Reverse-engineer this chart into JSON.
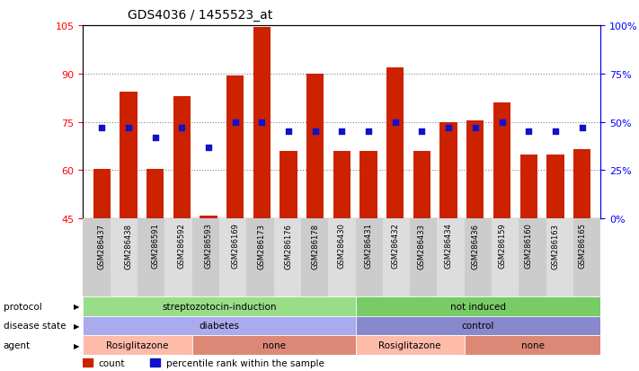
{
  "title": "GDS4036 / 1455523_at",
  "samples": [
    "GSM286437",
    "GSM286438",
    "GSM286591",
    "GSM286592",
    "GSM286593",
    "GSM286169",
    "GSM286173",
    "GSM286176",
    "GSM286178",
    "GSM286430",
    "GSM286431",
    "GSM286432",
    "GSM286433",
    "GSM286434",
    "GSM286436",
    "GSM286159",
    "GSM286160",
    "GSM286163",
    "GSM286165"
  ],
  "counts": [
    60.5,
    84.5,
    60.5,
    83.0,
    46.0,
    89.5,
    104.5,
    66.0,
    90.0,
    66.0,
    66.0,
    92.0,
    66.0,
    75.0,
    75.5,
    81.0,
    65.0,
    65.0,
    66.5
  ],
  "percentiles": [
    47,
    47,
    42,
    47,
    37,
    50,
    50,
    45,
    45,
    45,
    45,
    50,
    45,
    47,
    47,
    50,
    45,
    45,
    47
  ],
  "ylim_left": [
    45,
    105
  ],
  "ylim_right": [
    0,
    100
  ],
  "yticks_left": [
    45,
    60,
    75,
    90,
    105
  ],
  "yticks_right": [
    0,
    25,
    50,
    75,
    100
  ],
  "ytick_labels_right": [
    "0%",
    "25%",
    "50%",
    "75%",
    "100%"
  ],
  "hlines": [
    60,
    75,
    90
  ],
  "bar_color": "#cc2200",
  "dot_color": "#1111cc",
  "protocol_groups": [
    {
      "label": "streptozotocin-induction",
      "start": 0,
      "end": 10,
      "color": "#99dd88"
    },
    {
      "label": "not induced",
      "start": 10,
      "end": 19,
      "color": "#77cc66"
    }
  ],
  "disease_groups": [
    {
      "label": "diabetes",
      "start": 0,
      "end": 10,
      "color": "#aaaaee"
    },
    {
      "label": "control",
      "start": 10,
      "end": 19,
      "color": "#8888cc"
    }
  ],
  "agent_groups": [
    {
      "label": "Rosiglitazone",
      "start": 0,
      "end": 4,
      "color": "#ffbbaa"
    },
    {
      "label": "none",
      "start": 4,
      "end": 10,
      "color": "#dd8877"
    },
    {
      "label": "Rosiglitazone",
      "start": 10,
      "end": 14,
      "color": "#ffbbaa"
    },
    {
      "label": "none",
      "start": 14,
      "end": 19,
      "color": "#dd8877"
    }
  ],
  "legend_count_color": "#cc2200",
  "legend_dot_color": "#1111cc"
}
